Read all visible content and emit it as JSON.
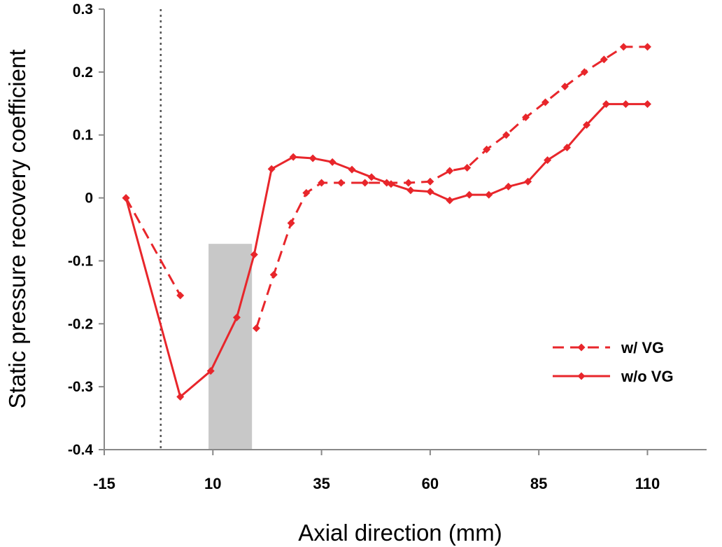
{
  "chart_data": {
    "type": "line",
    "title": "",
    "xlabel": "Axial direction (mm)",
    "ylabel": "Static pressure recovery coefficient",
    "xlim": [
      -15,
      122
    ],
    "ylim": [
      -0.4,
      0.3
    ],
    "xticks": [
      "-15",
      "10",
      "35",
      "60",
      "85",
      "110"
    ],
    "xtick_values": [
      -15,
      10,
      35,
      60,
      85,
      110
    ],
    "yticks": [
      "0.3",
      "0.2",
      "0.1",
      "0",
      "-0.1",
      "-0.2",
      "-0.3",
      "-0.4"
    ],
    "ytick_values": [
      0.3,
      0.2,
      0.1,
      0,
      -0.1,
      -0.2,
      -0.3,
      -0.4
    ],
    "grid": false,
    "legend_position": "right",
    "reference_line_x": -2,
    "shaded_region": {
      "x0": 9,
      "x1": 19,
      "y0": -0.4,
      "y1": -0.073
    },
    "series": [
      {
        "name": "w/ VG",
        "style": "dashed",
        "color": "#e8262b",
        "segments": [
          {
            "x": [
              -10,
              2.5
            ],
            "y": [
              0,
              -0.155
            ]
          },
          {
            "x": [
              20,
              24,
              28,
              31.5,
              35,
              39.5,
              45,
              50,
              55,
              60,
              64.5,
              68.5,
              73,
              77.5,
              82,
              86.5,
              91,
              95.5,
              100,
              104.5,
              110
            ],
            "y": [
              -0.207,
              -0.122,
              -0.04,
              0.008,
              0.024,
              0.024,
              0.024,
              0.024,
              0.024,
              0.026,
              0.043,
              0.048,
              0.077,
              0.1,
              0.128,
              0.152,
              0.177,
              0.2,
              0.22,
              0.24,
              0.24
            ]
          }
        ]
      },
      {
        "name": "w/o VG",
        "style": "solid",
        "color": "#e8262b",
        "segments": [
          {
            "x": [
              -10,
              2.5,
              9.5,
              15.5,
              19.5,
              23.5,
              28.5,
              33,
              37.5,
              42,
              46.5,
              51,
              55.5,
              60,
              64.5,
              69,
              73.5,
              78,
              82.5,
              87,
              91.5,
              96,
              100.5,
              105,
              110
            ],
            "y": [
              0,
              -0.316,
              -0.275,
              -0.19,
              -0.09,
              0.046,
              0.065,
              0.063,
              0.057,
              0.045,
              0.033,
              0.022,
              0.012,
              0.01,
              -0.004,
              0.005,
              0.005,
              0.018,
              0.026,
              0.06,
              0.08,
              0.116,
              0.149,
              0.149,
              0.149
            ]
          }
        ]
      }
    ]
  }
}
